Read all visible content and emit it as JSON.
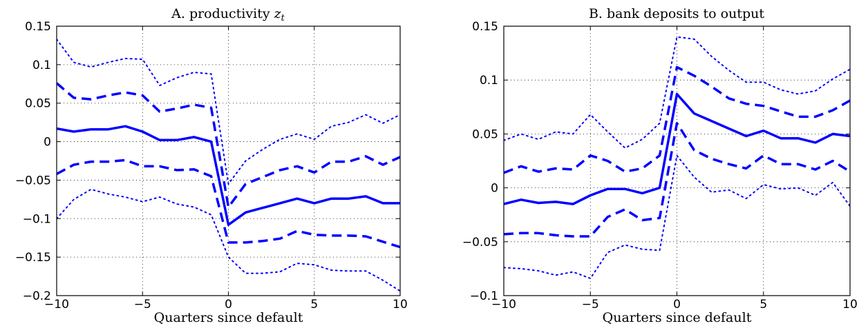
{
  "figure": {
    "panels": [
      {
        "title": "A. productivity ",
        "title_var": "z",
        "title_sub": "t",
        "xlabel": "Quarters since default"
      },
      {
        "title": "B. bank deposits to output",
        "title_var": "",
        "title_sub": "",
        "xlabel": "Quarters since default"
      }
    ]
  },
  "chart_data": [
    {
      "type": "line",
      "title": "A. productivity z_t",
      "xlabel": "Quarters since default",
      "ylabel": "",
      "xlim": [
        -10,
        10
      ],
      "ylim": [
        -0.2,
        0.15
      ],
      "xticks": [
        -10,
        -5,
        0,
        5,
        10
      ],
      "xtick_labels": [
        "−10",
        "−5",
        "0",
        "5",
        "10"
      ],
      "yticks": [
        -0.2,
        -0.15,
        -0.1,
        -0.05,
        0,
        0.05,
        0.1,
        0.15
      ],
      "ytick_labels": [
        "−0.2",
        "−0.15",
        "−0.1",
        "−0.05",
        "0",
        "0.05",
        "0.1",
        "0.15"
      ],
      "grid": true,
      "color": "#0000ff",
      "x": [
        -10,
        -9,
        -8,
        -7,
        -6,
        -5,
        -4,
        -3,
        -2,
        -1,
        0,
        1,
        2,
        3,
        4,
        5,
        6,
        7,
        8,
        9,
        10
      ],
      "series": [
        {
          "style": "solid",
          "values": [
            0.017,
            0.013,
            0.016,
            0.016,
            0.02,
            0.013,
            0.002,
            0.002,
            0.006,
            0.0,
            -0.108,
            -0.092,
            -0.086,
            -0.08,
            -0.074,
            -0.08,
            -0.074,
            -0.074,
            -0.071,
            -0.08,
            -0.08
          ]
        },
        {
          "style": "dashed",
          "values": [
            0.076,
            0.057,
            0.055,
            0.06,
            0.064,
            0.06,
            0.039,
            0.043,
            0.048,
            0.044,
            -0.085,
            -0.055,
            -0.046,
            -0.037,
            -0.032,
            -0.04,
            -0.026,
            -0.026,
            -0.019,
            -0.03,
            -0.02
          ]
        },
        {
          "style": "dashed",
          "values": [
            -0.042,
            -0.03,
            -0.026,
            -0.026,
            -0.024,
            -0.032,
            -0.032,
            -0.037,
            -0.036,
            -0.045,
            -0.131,
            -0.131,
            -0.129,
            -0.126,
            -0.116,
            -0.121,
            -0.122,
            -0.122,
            -0.123,
            -0.13,
            -0.137
          ]
        },
        {
          "style": "dotted",
          "values": [
            0.133,
            0.103,
            0.097,
            0.103,
            0.108,
            0.107,
            0.073,
            0.083,
            0.09,
            0.088,
            -0.055,
            -0.025,
            -0.01,
            0.003,
            0.01,
            0.003,
            0.02,
            0.025,
            0.035,
            0.024,
            0.035
          ]
        },
        {
          "style": "dotted",
          "values": [
            -0.1,
            -0.075,
            -0.062,
            -0.068,
            -0.072,
            -0.078,
            -0.072,
            -0.081,
            -0.085,
            -0.095,
            -0.15,
            -0.171,
            -0.171,
            -0.169,
            -0.158,
            -0.16,
            -0.167,
            -0.168,
            -0.168,
            -0.18,
            -0.194
          ]
        }
      ]
    },
    {
      "type": "line",
      "title": "B. bank deposits to output",
      "xlabel": "Quarters since default",
      "ylabel": "",
      "xlim": [
        -10,
        10
      ],
      "ylim": [
        -0.1,
        0.15
      ],
      "xticks": [
        -10,
        -5,
        0,
        5,
        10
      ],
      "xtick_labels": [
        "−10",
        "−5",
        "0",
        "5",
        "10"
      ],
      "yticks": [
        -0.1,
        -0.05,
        0,
        0.05,
        0.1,
        0.15
      ],
      "ytick_labels": [
        "−0.1",
        "−0.05",
        "0",
        "0.05",
        "0.1",
        "0.15"
      ],
      "grid": true,
      "color": "#0000ff",
      "x": [
        -10,
        -9,
        -8,
        -7,
        -6,
        -5,
        -4,
        -3,
        -2,
        -1,
        0,
        1,
        2,
        3,
        4,
        5,
        6,
        7,
        8,
        9,
        10
      ],
      "series": [
        {
          "style": "solid",
          "values": [
            -0.015,
            -0.011,
            -0.014,
            -0.013,
            -0.015,
            -0.007,
            -0.001,
            -0.001,
            -0.005,
            0.0,
            0.087,
            0.069,
            0.062,
            0.055,
            0.048,
            0.053,
            0.046,
            0.046,
            0.042,
            0.05,
            0.048
          ]
        },
        {
          "style": "dashed",
          "values": [
            0.014,
            0.02,
            0.015,
            0.018,
            0.017,
            0.03,
            0.025,
            0.015,
            0.018,
            0.03,
            0.112,
            0.104,
            0.094,
            0.083,
            0.078,
            0.076,
            0.071,
            0.066,
            0.066,
            0.072,
            0.081
          ]
        },
        {
          "style": "dashed",
          "values": [
            -0.043,
            -0.042,
            -0.042,
            -0.044,
            -0.045,
            -0.045,
            -0.027,
            -0.02,
            -0.03,
            -0.028,
            0.06,
            0.035,
            0.027,
            0.022,
            0.018,
            0.03,
            0.022,
            0.022,
            0.017,
            0.025,
            0.015
          ]
        },
        {
          "style": "dotted",
          "values": [
            0.044,
            0.05,
            0.045,
            0.052,
            0.05,
            0.068,
            0.052,
            0.037,
            0.045,
            0.06,
            0.14,
            0.138,
            0.122,
            0.109,
            0.098,
            0.098,
            0.091,
            0.087,
            0.09,
            0.101,
            0.11
          ]
        },
        {
          "style": "dotted",
          "values": [
            -0.074,
            -0.075,
            -0.077,
            -0.081,
            -0.078,
            -0.084,
            -0.06,
            -0.053,
            -0.057,
            -0.058,
            0.03,
            0.01,
            -0.004,
            -0.002,
            -0.01,
            0.003,
            -0.001,
            0.0,
            -0.007,
            0.005,
            -0.017
          ]
        }
      ]
    }
  ]
}
